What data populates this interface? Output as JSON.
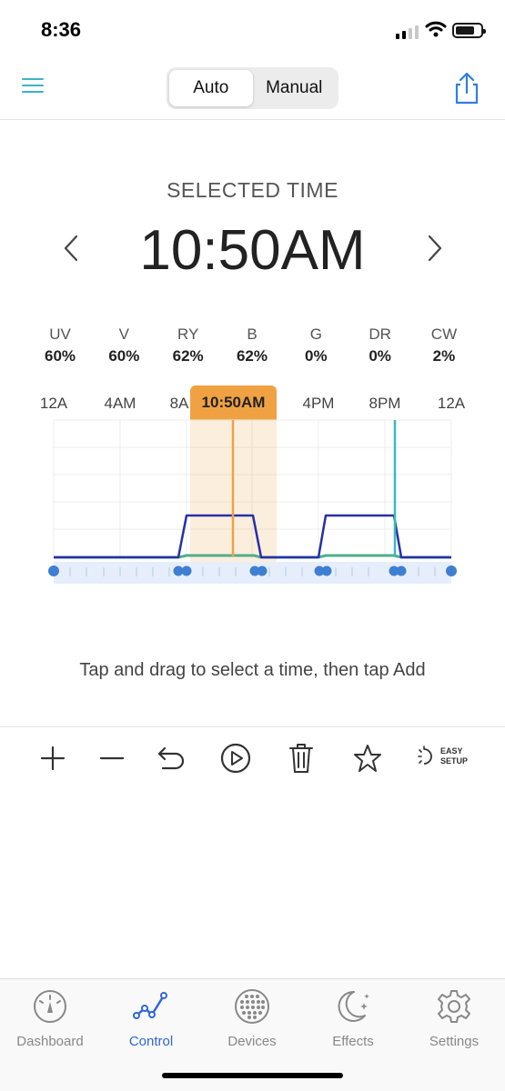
{
  "status_bar": {
    "time": "8:36"
  },
  "nav": {
    "modes": [
      {
        "label": "Auto",
        "active": true
      },
      {
        "label": "Manual",
        "active": false
      }
    ],
    "menu_icon": "hamburger-menu-icon",
    "share_icon": "share-icon"
  },
  "selected": {
    "label": "SELECTED TIME",
    "time": "10:50AM"
  },
  "channels": [
    {
      "name": "UV",
      "value": "60%"
    },
    {
      "name": "V",
      "value": "60%"
    },
    {
      "name": "RY",
      "value": "62%"
    },
    {
      "name": "B",
      "value": "62%"
    },
    {
      "name": "G",
      "value": "0%"
    },
    {
      "name": "DR",
      "value": "0%"
    },
    {
      "name": "CW",
      "value": "2%"
    }
  ],
  "timeline": {
    "ticks": [
      "12A",
      "4AM",
      "8A",
      "4PM",
      "8PM",
      "12A"
    ],
    "badge": "10:50AM"
  },
  "hint": "Tap and drag to select a time, then tap Add",
  "toolbar": {
    "icons": [
      "add-icon",
      "remove-icon",
      "undo-icon",
      "play-icon",
      "trash-icon",
      "favorite-star-icon",
      "easy-setup-icon"
    ],
    "easy_setup_line1": "EASY",
    "easy_setup_line2": "SETUP"
  },
  "tabs": [
    {
      "label": "Dashboard",
      "icon": "gauge-icon",
      "active": false
    },
    {
      "label": "Control",
      "icon": "graph-icon",
      "active": true
    },
    {
      "label": "Devices",
      "icon": "led-grid-icon",
      "active": false
    },
    {
      "label": "Effects",
      "icon": "moon-stars-icon",
      "active": false
    },
    {
      "label": "Settings",
      "icon": "gear-icon",
      "active": false
    }
  ],
  "colors": {
    "accent": "#2f66d8",
    "menu": "#3cb4c8",
    "selection": "#f0a243",
    "series_blue": "#2630a8",
    "series_green": "#4fae8a",
    "marker_teal": "#3ab8c2",
    "point": "#3f7fd1"
  }
}
